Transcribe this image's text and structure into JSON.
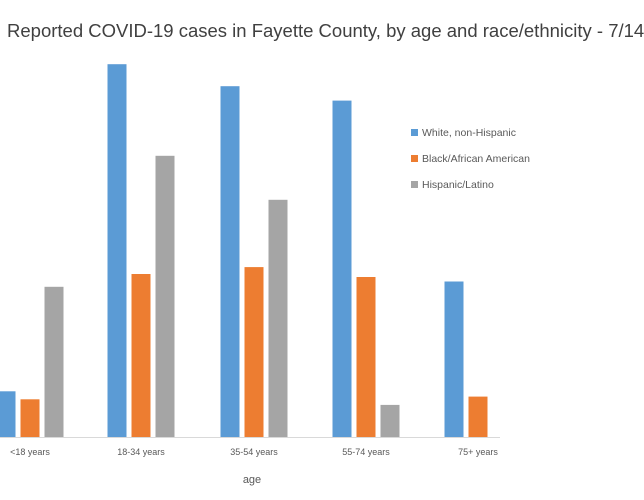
{
  "chart_data": {
    "type": "bar",
    "title": "Reported COVID-19 cases in Fayette County, by age and race/ethnicity - 7/14",
    "xlabel": "age",
    "ylabel": "",
    "categories": [
      "<18 years",
      "18-34 years",
      "35-54 years",
      "55-74 years",
      "75+ years"
    ],
    "series": [
      {
        "name": "White, non-Hispanic",
        "color": "#5B9BD5",
        "values": [
          122,
          986,
          928,
          890,
          412
        ]
      },
      {
        "name": "Black/African American",
        "color": "#ED7D31",
        "values": [
          101,
          432,
          450,
          424,
          108
        ]
      },
      {
        "name": "Hispanic/Latino",
        "color": "#A5A5A5",
        "values": [
          398,
          744,
          628,
          86,
          0
        ]
      }
    ],
    "ylim": [
      0,
      1050
    ],
    "grid": false,
    "legend_position": "right"
  }
}
